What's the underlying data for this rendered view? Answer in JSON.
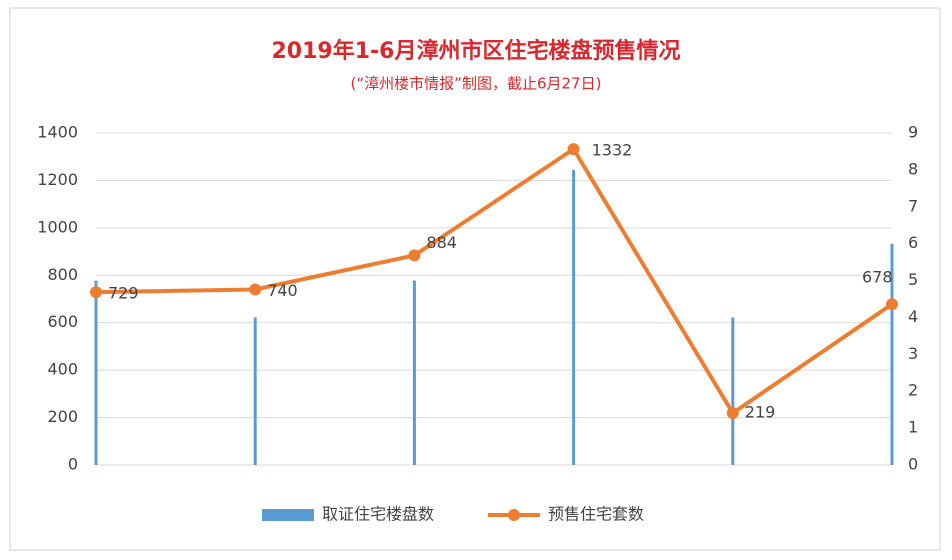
{
  "chart_data": {
    "type": "bar-line",
    "title": "2019年1-6月漳州市区住宅楼盘预售情况",
    "subtitle": "(“漳州楼市情报”制图，截止6月27日)",
    "categories": [
      null,
      null,
      null,
      null,
      null,
      null
    ],
    "series": [
      {
        "name": "取证住宅楼盘数",
        "type": "bar",
        "axis": "y2",
        "color": "#5b9bd5",
        "values": [
          5,
          4,
          5,
          8,
          4,
          6
        ]
      },
      {
        "name": "预售住宅套数",
        "type": "line",
        "color": "#ed7d31",
        "values": [
          729,
          740,
          884,
          1332,
          219,
          678
        ]
      }
    ],
    "ylim": [
      0,
      1400
    ],
    "yticks": [
      0,
      200,
      400,
      600,
      800,
      1000,
      1200,
      1400
    ],
    "y2lim": [
      0,
      9
    ],
    "y2ticks": [
      0,
      1,
      2,
      3,
      4,
      5,
      6,
      7,
      8,
      9
    ],
    "grid": true,
    "legend": "bottom"
  }
}
